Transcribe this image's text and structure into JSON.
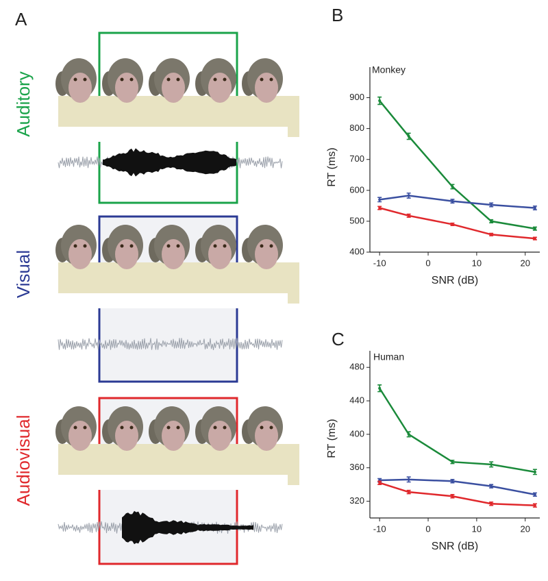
{
  "figure": {
    "panel_labels": [
      "A",
      "B",
      "C"
    ],
    "conditions": [
      "Auditory",
      "Visual",
      "Audiovisual"
    ]
  },
  "chart_data": [
    {
      "type": "line",
      "title": "Monkey",
      "xlabel": "SNR (dB)",
      "ylabel": "RT (ms)",
      "x": [
        -10,
        -4,
        5,
        13,
        22
      ],
      "xlim": [
        -12,
        23
      ],
      "xticks": [
        -10,
        0,
        10,
        20
      ],
      "ylim": [
        400,
        950
      ],
      "yticks": [
        400,
        500,
        600,
        700,
        800,
        900
      ],
      "series": [
        {
          "name": "Auditory",
          "color": "#1a8a3a",
          "values": [
            890,
            775,
            612,
            500,
            476
          ],
          "errors": [
            12,
            10,
            7,
            5,
            5
          ]
        },
        {
          "name": "Visual",
          "color": "#3a4fa0",
          "values": [
            570,
            583,
            565,
            553,
            543
          ],
          "errors": [
            7,
            8,
            6,
            6,
            6
          ]
        },
        {
          "name": "Audiovisual",
          "color": "#e0282c",
          "values": [
            543,
            518,
            490,
            457,
            444
          ],
          "errors": [
            5,
            5,
            4,
            4,
            4
          ]
        }
      ]
    },
    {
      "type": "line",
      "title": "Human",
      "xlabel": "SNR (dB)",
      "ylabel": "RT (ms)",
      "x": [
        -10,
        -4,
        5,
        13,
        22
      ],
      "xlim": [
        -12,
        23
      ],
      "xticks": [
        -10,
        0,
        10,
        20
      ],
      "ylim": [
        300,
        490
      ],
      "yticks": [
        320,
        360,
        400,
        440,
        480
      ],
      "series": [
        {
          "name": "Auditory",
          "color": "#1a8a3a",
          "values": [
            455,
            400,
            367,
            364,
            355
          ],
          "errors": [
            4,
            3,
            2,
            3,
            3
          ]
        },
        {
          "name": "Visual",
          "color": "#3a4fa0",
          "values": [
            345,
            346,
            344,
            338,
            328
          ],
          "errors": [
            2,
            3,
            2,
            2,
            2
          ]
        },
        {
          "name": "Audiovisual",
          "color": "#e0282c",
          "values": [
            342,
            331,
            326,
            317,
            315
          ],
          "errors": [
            2,
            2,
            2,
            2,
            2
          ]
        }
      ]
    }
  ]
}
